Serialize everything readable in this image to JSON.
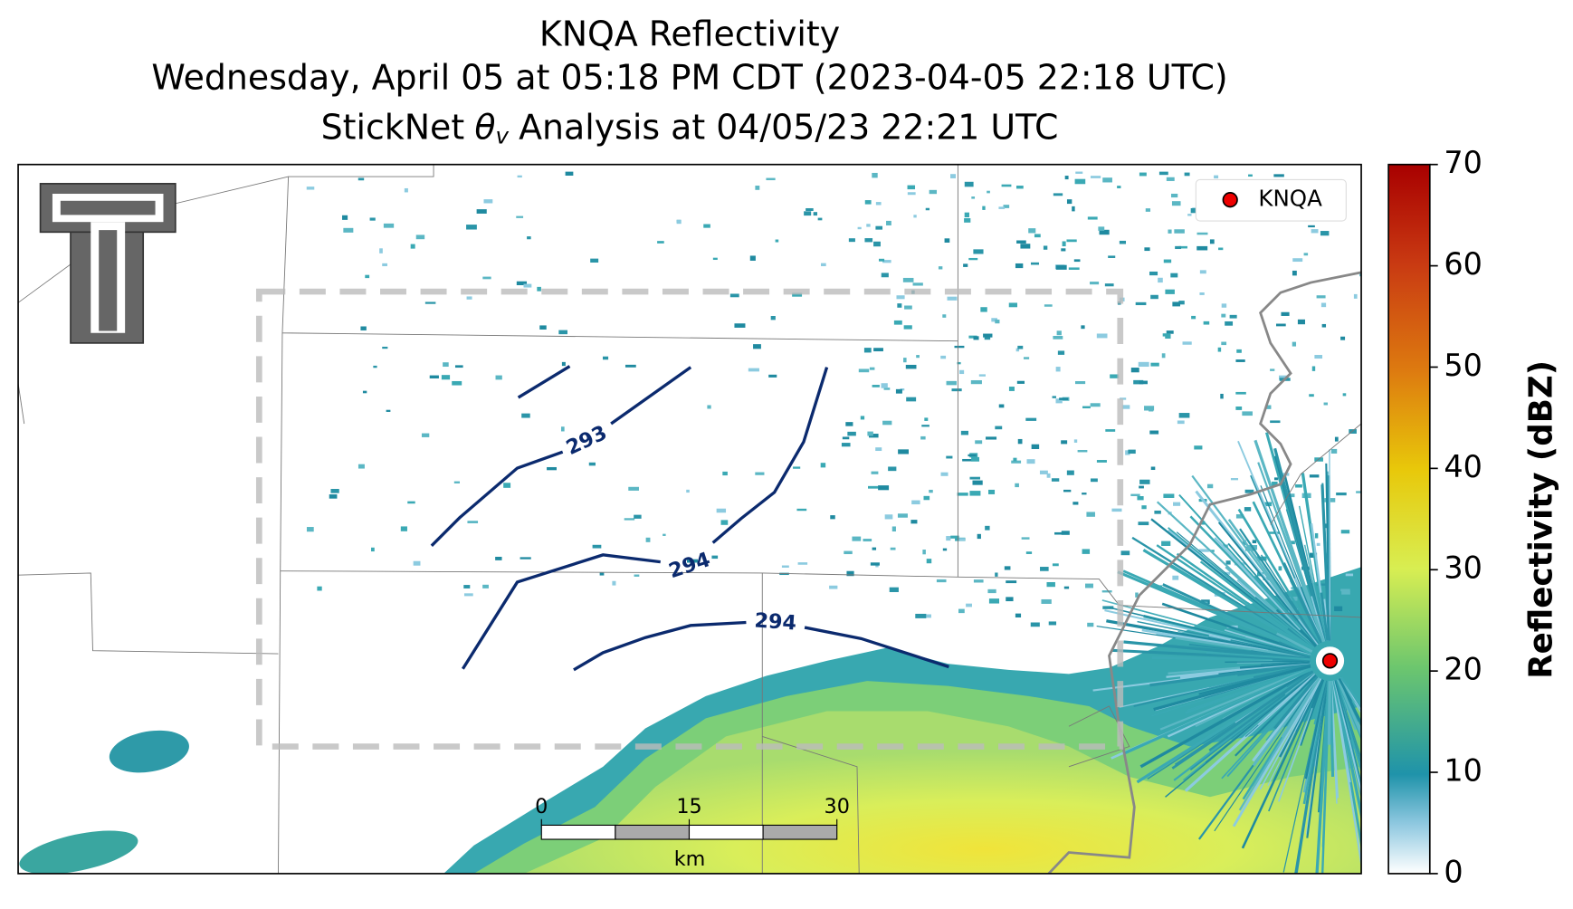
{
  "header": {
    "title": "KNQA Reflectivity",
    "subtitle": "Wednesday, April 05 at 05:18 PM CDT (2023-04-05 22:18 UTC)",
    "analysis": {
      "prefix": "StickNet",
      "symbol": "θ",
      "subscript": "v",
      "suffix": "Analysis at 04/05/23 22:21 UTC"
    }
  },
  "legend": {
    "label": "KNQA"
  },
  "contours": [
    {
      "label": 293
    },
    {
      "label": 294
    },
    {
      "label": 294
    }
  ],
  "scalebar": {
    "ticks": [
      0,
      15,
      30
    ],
    "unit": "km"
  },
  "colorbar": {
    "label": "Reflectivity (dBZ)",
    "lim": [
      0,
      70
    ],
    "ticks": [
      0,
      10,
      20,
      30,
      40,
      50,
      60,
      70
    ]
  }
}
